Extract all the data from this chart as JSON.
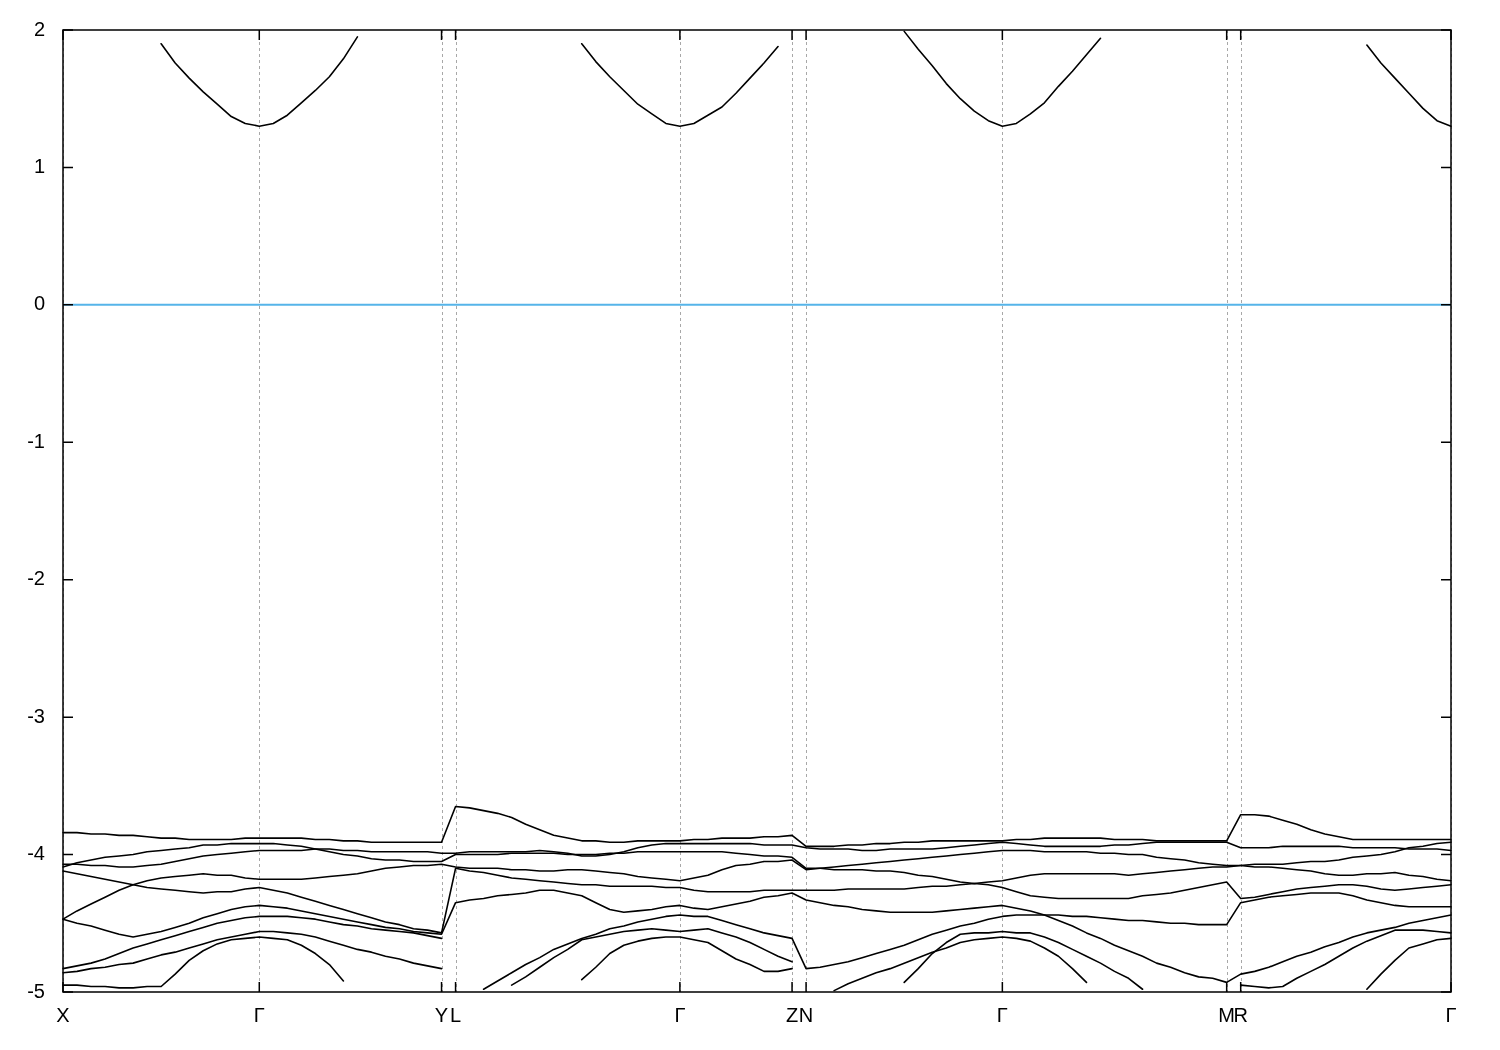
{
  "chart_data": {
    "type": "line",
    "ylim": [
      -5,
      2
    ],
    "categories": [
      "X",
      null,
      null,
      null,
      null,
      null,
      null,
      null,
      null,
      null,
      null,
      null,
      null,
      null,
      "Γ",
      null,
      null,
      null,
      null,
      null,
      null,
      null,
      null,
      null,
      null,
      null,
      null,
      "Y",
      "L",
      null,
      null,
      null,
      null,
      null,
      null,
      null,
      null,
      null,
      null,
      null,
      null,
      null,
      null,
      null,
      "Γ",
      null,
      null,
      null,
      null,
      null,
      null,
      null,
      "Z",
      "N",
      null,
      null,
      null,
      null,
      null,
      null,
      null,
      null,
      null,
      null,
      null,
      null,
      null,
      "Γ",
      null,
      null,
      null,
      null,
      null,
      null,
      null,
      null,
      null,
      null,
      null,
      null,
      null,
      null,
      null,
      "M",
      "R",
      null,
      null,
      null,
      null,
      null,
      null,
      null,
      null,
      null,
      null,
      null,
      null,
      null,
      null,
      "Γ"
    ],
    "yticks": [
      -5,
      -4,
      -3,
      -2,
      -1,
      0,
      1,
      2
    ],
    "grid": "x",
    "legend": false,
    "marker": "none",
    "line_style": "solid",
    "ref_lines": [
      {
        "axis": "y",
        "value": 0,
        "color": "#56b4e9"
      }
    ],
    "series": [
      {
        "color": "#000000",
        "values": [
          null,
          null,
          null,
          null,
          null,
          null,
          null,
          1.9,
          1.76,
          1.65,
          1.55,
          1.46,
          1.37,
          1.32,
          1.3,
          1.32,
          1.38,
          1.47,
          1.56,
          1.66,
          1.79,
          1.95,
          null,
          null,
          null,
          null,
          null,
          null,
          null,
          null,
          null,
          null,
          null,
          null,
          null,
          null,
          null,
          1.9,
          1.77,
          1.66,
          1.56,
          1.46,
          1.39,
          1.32,
          1.3,
          1.32,
          1.38,
          1.44,
          1.54,
          1.65,
          1.76,
          1.88,
          null,
          null,
          null,
          null,
          null,
          null,
          null,
          null,
          1.99,
          1.86,
          1.74,
          1.61,
          1.5,
          1.41,
          1.34,
          1.3,
          1.32,
          1.39,
          1.47,
          1.59,
          1.7,
          1.82,
          1.94,
          null,
          null,
          null,
          null,
          null,
          null,
          null,
          null,
          null,
          null,
          null,
          null,
          null,
          null,
          null,
          null,
          null,
          null,
          1.89,
          1.76,
          1.65,
          1.54,
          1.43,
          1.34,
          1.3
        ]
      },
      {
        "color": "#000000",
        "values": [
          -3.84,
          -3.84,
          -3.85,
          -3.85,
          -3.86,
          -3.86,
          -3.87,
          -3.88,
          -3.88,
          -3.89,
          -3.89,
          -3.89,
          -3.89,
          -3.88,
          -3.88,
          -3.88,
          -3.88,
          -3.88,
          -3.89,
          -3.89,
          -3.9,
          -3.9,
          -3.91,
          -3.91,
          -3.91,
          -3.91,
          -3.91,
          -3.91,
          -3.65,
          -3.66,
          -3.68,
          -3.7,
          -3.73,
          -3.78,
          -3.82,
          -3.86,
          -3.88,
          -3.9,
          -3.9,
          -3.91,
          -3.91,
          -3.9,
          -3.9,
          -3.9,
          -3.9,
          -3.89,
          -3.89,
          -3.88,
          -3.88,
          -3.88,
          -3.87,
          -3.87,
          -3.86,
          -3.94,
          -3.94,
          -3.94,
          -3.93,
          -3.93,
          -3.92,
          -3.92,
          -3.91,
          -3.91,
          -3.9,
          -3.9,
          -3.9,
          -3.9,
          -3.9,
          -3.9,
          -3.89,
          -3.89,
          -3.88,
          -3.88,
          -3.88,
          -3.88,
          -3.88,
          -3.89,
          -3.89,
          -3.89,
          -3.9,
          -3.9,
          -3.9,
          -3.9,
          -3.9,
          -3.9,
          -3.71,
          -3.71,
          -3.72,
          -3.75,
          -3.78,
          -3.82,
          -3.85,
          -3.87,
          -3.89,
          -3.89,
          -3.89,
          -3.89,
          -3.89,
          -3.89,
          -3.89,
          -3.89
        ]
      },
      {
        "color": "#000000",
        "values": [
          -4.07,
          -4.07,
          -4.08,
          -4.08,
          -4.09,
          -4.09,
          -4.08,
          -4.07,
          -4.05,
          -4.03,
          -4.01,
          -4,
          -3.99,
          -3.98,
          -3.97,
          -3.97,
          -3.97,
          -3.97,
          -3.96,
          -3.96,
          -3.97,
          -3.97,
          -3.98,
          -3.98,
          -3.98,
          -3.98,
          -3.98,
          -3.99,
          -3.99,
          -3.98,
          -3.98,
          -3.98,
          -3.98,
          -3.98,
          -3.97,
          -3.98,
          -3.99,
          -4.01,
          -4.01,
          -4,
          -3.98,
          -3.95,
          -3.93,
          -3.92,
          -3.92,
          -3.92,
          -3.92,
          -3.92,
          -3.92,
          -3.92,
          -3.93,
          -3.93,
          -3.93,
          -3.95,
          -3.96,
          -3.96,
          -3.96,
          -3.97,
          -3.97,
          -3.96,
          -3.96,
          -3.96,
          -3.96,
          -3.95,
          -3.94,
          -3.93,
          -3.92,
          -3.91,
          -3.92,
          -3.93,
          -3.94,
          -3.94,
          -3.94,
          -3.94,
          -3.94,
          -3.93,
          -3.93,
          -3.92,
          -3.91,
          -3.91,
          -3.91,
          -3.91,
          -3.91,
          -3.91,
          -3.95,
          -3.95,
          -3.95,
          -3.94,
          -3.94,
          -3.94,
          -3.94,
          -3.94,
          -3.95,
          -3.95,
          -3.95,
          -3.95,
          -3.96,
          -3.96,
          -3.96,
          -3.97
        ]
      },
      {
        "color": "#000000",
        "values": [
          -4.09,
          -4.06,
          -4.04,
          -4.02,
          -4.01,
          -4,
          -3.98,
          -3.97,
          -3.96,
          -3.95,
          -3.93,
          -3.93,
          -3.92,
          -3.92,
          -3.92,
          -3.92,
          -3.93,
          -3.94,
          -3.96,
          -3.98,
          -4,
          -4.01,
          -4.03,
          -4.04,
          -4.04,
          -4.05,
          -4.05,
          -4.05,
          -4,
          -4,
          -4,
          -4,
          -3.99,
          -3.99,
          -3.99,
          -3.99,
          -4,
          -4,
          -4,
          -3.99,
          -3.99,
          -3.98,
          -3.98,
          -3.98,
          -3.98,
          -3.98,
          -3.98,
          -3.98,
          -3.99,
          -4,
          -4.01,
          -4.01,
          -4.02,
          -4.1,
          -4.1,
          -4.11,
          -4.11,
          -4.11,
          -4.12,
          -4.12,
          -4.13,
          -4.15,
          -4.16,
          -4.18,
          -4.2,
          -4.21,
          -4.2,
          -4.19,
          -4.17,
          -4.15,
          -4.14,
          -4.14,
          -4.14,
          -4.14,
          -4.14,
          -4.14,
          -4.15,
          -4.14,
          -4.13,
          -4.12,
          -4.11,
          -4.1,
          -4.09,
          -4.09,
          -4.08,
          -4.07,
          -4.07,
          -4.07,
          -4.06,
          -4.05,
          -4.05,
          -4.04,
          -4.02,
          -4.01,
          -4,
          -3.98,
          -3.95,
          -3.94,
          -3.92,
          -3.91
        ]
      },
      {
        "color": "#000000",
        "values": [
          -4.47,
          -4.41,
          -4.36,
          -4.31,
          -4.26,
          -4.22,
          -4.19,
          -4.17,
          -4.16,
          -4.15,
          -4.14,
          -4.15,
          -4.15,
          -4.17,
          -4.18,
          -4.18,
          -4.18,
          -4.18,
          -4.17,
          -4.16,
          -4.15,
          -4.14,
          -4.12,
          -4.1,
          -4.09,
          -4.08,
          -4.08,
          -4.07,
          -4.09,
          -4.1,
          -4.1,
          -4.1,
          -4.11,
          -4.11,
          -4.12,
          -4.12,
          -4.11,
          -4.11,
          -4.12,
          -4.13,
          -4.14,
          -4.16,
          -4.17,
          -4.18,
          -4.19,
          -4.17,
          -4.15,
          -4.11,
          -4.08,
          -4.07,
          -4.05,
          -4.05,
          -4.04,
          -4.11,
          -4.1,
          -4.09,
          -4.08,
          -4.07,
          -4.06,
          -4.05,
          -4.04,
          -4.03,
          -4.02,
          -4.01,
          -4,
          -3.99,
          -3.98,
          -3.97,
          -3.97,
          -3.97,
          -3.98,
          -3.98,
          -3.98,
          -3.98,
          -3.99,
          -3.99,
          -4,
          -4,
          -4.02,
          -4.03,
          -4.04,
          -4.06,
          -4.07,
          -4.08,
          -4.08,
          -4.09,
          -4.09,
          -4.1,
          -4.11,
          -4.12,
          -4.14,
          -4.15,
          -4.15,
          -4.14,
          -4.14,
          -4.13,
          -4.15,
          -4.16,
          -4.18,
          -4.19
        ]
      },
      {
        "color": "#000000",
        "values": [
          -4.12,
          -4.14,
          -4.16,
          -4.18,
          -4.2,
          -4.22,
          -4.24,
          -4.25,
          -4.26,
          -4.27,
          -4.28,
          -4.27,
          -4.27,
          -4.25,
          -4.24,
          -4.26,
          -4.28,
          -4.31,
          -4.34,
          -4.37,
          -4.4,
          -4.43,
          -4.46,
          -4.49,
          -4.51,
          -4.54,
          -4.55,
          -4.57,
          -4.1,
          -4.12,
          -4.13,
          -4.15,
          -4.17,
          -4.18,
          -4.19,
          -4.2,
          -4.21,
          -4.22,
          -4.22,
          -4.23,
          -4.23,
          -4.23,
          -4.23,
          -4.24,
          -4.24,
          -4.26,
          -4.27,
          -4.27,
          -4.27,
          -4.27,
          -4.26,
          -4.26,
          -4.26,
          -4.26,
          -4.26,
          -4.26,
          -4.25,
          -4.25,
          -4.25,
          -4.25,
          -4.25,
          -4.24,
          -4.23,
          -4.23,
          -4.22,
          -4.21,
          -4.22,
          -4.24,
          -4.27,
          -4.3,
          -4.31,
          -4.32,
          -4.32,
          -4.32,
          -4.32,
          -4.32,
          -4.32,
          -4.3,
          -4.29,
          -4.28,
          -4.26,
          -4.24,
          -4.22,
          -4.2,
          -4.32,
          -4.31,
          -4.29,
          -4.27,
          -4.25,
          -4.24,
          -4.23,
          -4.22,
          -4.22,
          -4.23,
          -4.25,
          -4.26,
          -4.25,
          -4.24,
          -4.23,
          -4.22
        ]
      },
      {
        "color": "#000000",
        "values": [
          -4.47,
          -4.5,
          -4.52,
          -4.55,
          -4.58,
          -4.6,
          -4.58,
          -4.56,
          -4.53,
          -4.5,
          -4.46,
          -4.43,
          -4.4,
          -4.38,
          -4.37,
          -4.38,
          -4.39,
          -4.41,
          -4.43,
          -4.45,
          -4.47,
          -4.49,
          -4.51,
          -4.53,
          -4.54,
          -4.56,
          -4.57,
          -4.58,
          -4.35,
          -4.33,
          -4.32,
          -4.3,
          -4.29,
          -4.28,
          -4.26,
          -4.26,
          -4.28,
          -4.3,
          -4.35,
          -4.4,
          -4.42,
          -4.41,
          -4.4,
          -4.38,
          -4.37,
          -4.39,
          -4.4,
          -4.38,
          -4.36,
          -4.34,
          -4.31,
          -4.3,
          -4.28,
          -4.33,
          -4.35,
          -4.37,
          -4.38,
          -4.4,
          -4.41,
          -4.42,
          -4.42,
          -4.42,
          -4.42,
          -4.41,
          -4.4,
          -4.39,
          -4.38,
          -4.37,
          -4.39,
          -4.41,
          -4.44,
          -4.44,
          -4.45,
          -4.45,
          -4.46,
          -4.47,
          -4.48,
          -4.48,
          -4.49,
          -4.5,
          -4.5,
          -4.51,
          -4.51,
          -4.51,
          -4.35,
          -4.33,
          -4.31,
          -4.3,
          -4.29,
          -4.28,
          -4.28,
          -4.28,
          -4.3,
          -4.33,
          -4.35,
          -4.37,
          -4.38,
          -4.38,
          -4.38,
          -4.38
        ]
      },
      {
        "color": "#000000",
        "values": [
          -4.83,
          -4.81,
          -4.79,
          -4.76,
          -4.72,
          -4.68,
          -4.65,
          -4.62,
          -4.59,
          -4.56,
          -4.53,
          -4.5,
          -4.48,
          -4.46,
          -4.45,
          -4.45,
          -4.45,
          -4.46,
          -4.47,
          -4.49,
          -4.51,
          -4.52,
          -4.54,
          -4.55,
          -4.56,
          -4.57,
          -4.59,
          -4.61,
          null,
          null,
          -4.98,
          -4.92,
          -4.86,
          -4.8,
          -4.75,
          -4.69,
          -4.65,
          -4.61,
          -4.58,
          -4.54,
          -4.52,
          -4.49,
          -4.47,
          -4.45,
          -4.44,
          -4.45,
          -4.45,
          -4.48,
          -4.51,
          -4.54,
          -4.57,
          -4.59,
          -4.61,
          -4.83,
          -4.82,
          -4.8,
          -4.78,
          -4.75,
          -4.72,
          -4.69,
          -4.66,
          -4.62,
          -4.58,
          -4.55,
          -4.52,
          -4.5,
          -4.47,
          -4.45,
          -4.44,
          -4.44,
          -4.44,
          -4.48,
          -4.52,
          -4.57,
          -4.61,
          -4.66,
          -4.7,
          -4.74,
          -4.79,
          -4.82,
          -4.86,
          -4.89,
          -4.9,
          -4.93,
          -4.87,
          -4.85,
          -4.82,
          -4.78,
          -4.74,
          -4.71,
          -4.67,
          -4.64,
          -4.6,
          -4.57,
          -4.55,
          -4.53,
          -4.5,
          -4.48,
          -4.46,
          -4.44
        ]
      },
      {
        "color": "#000000",
        "values": [
          -4.86,
          -4.85,
          -4.83,
          -4.82,
          -4.8,
          -4.79,
          -4.76,
          -4.73,
          -4.71,
          -4.68,
          -4.65,
          -4.62,
          -4.6,
          -4.58,
          -4.56,
          -4.56,
          -4.57,
          -4.58,
          -4.6,
          -4.63,
          -4.66,
          -4.69,
          -4.71,
          -4.74,
          -4.76,
          -4.79,
          -4.81,
          -4.83,
          null,
          null,
          null,
          null,
          -4.95,
          -4.89,
          -4.82,
          -4.75,
          -4.69,
          -4.62,
          -4.6,
          -4.58,
          -4.56,
          -4.55,
          -4.54,
          -4.55,
          -4.56,
          -4.55,
          -4.54,
          -4.57,
          -4.6,
          -4.64,
          -4.69,
          -4.74,
          -4.78,
          null,
          null,
          null,
          null,
          null,
          null,
          null,
          -4.93,
          -4.83,
          -4.72,
          -4.64,
          -4.58,
          -4.57,
          -4.57,
          -4.56,
          -4.57,
          -4.57,
          -4.6,
          -4.64,
          -4.69,
          -4.74,
          -4.79,
          -4.85,
          -4.9,
          -4.98,
          null,
          null,
          null,
          null,
          null,
          null,
          -4.95,
          -4.96,
          -4.97,
          -4.96,
          -4.9,
          -4.85,
          -4.8,
          -4.74,
          -4.68,
          -4.63,
          -4.59,
          -4.55,
          -4.55,
          -4.55,
          -4.56,
          -4.57
        ]
      },
      {
        "color": "#000000",
        "values": [
          -4.95,
          -4.95,
          -4.96,
          -4.96,
          -4.97,
          -4.97,
          -4.96,
          -4.96,
          -4.87,
          -4.77,
          -4.7,
          -4.65,
          -4.62,
          -4.61,
          -4.6,
          -4.61,
          -4.62,
          -4.66,
          -4.72,
          -4.8,
          -4.92,
          null,
          null,
          null,
          null,
          null,
          null,
          null,
          null,
          null,
          null,
          null,
          null,
          null,
          null,
          null,
          null,
          -4.91,
          -4.82,
          -4.72,
          -4.66,
          -4.63,
          -4.61,
          -4.6,
          -4.6,
          -4.62,
          -4.64,
          -4.7,
          -4.76,
          -4.8,
          -4.85,
          -4.85,
          -4.83,
          null,
          null,
          -4.99,
          -4.94,
          -4.9,
          -4.86,
          -4.83,
          -4.79,
          -4.75,
          -4.71,
          -4.68,
          -4.64,
          -4.62,
          -4.61,
          -4.6,
          -4.61,
          -4.63,
          -4.68,
          -4.74,
          -4.83,
          -4.93,
          null,
          null,
          null,
          null,
          null,
          null,
          null,
          null,
          null,
          null,
          null,
          null,
          null,
          null,
          null,
          null,
          null,
          null,
          null,
          -4.98,
          -4.87,
          -4.77,
          -4.68,
          -4.65,
          -4.62,
          -4.61
        ]
      }
    ]
  }
}
